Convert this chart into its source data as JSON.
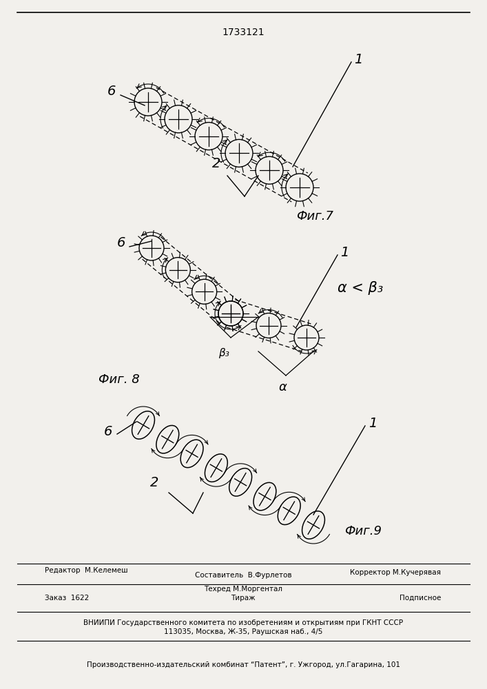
{
  "title": "1733121",
  "bg_color": "#f2f0ec",
  "fig7_label": "Фиг.7",
  "fig8_label": "Фиг. 8",
  "fig9_label": "Фиг.9",
  "alpha_beta_label": "α < β₃",
  "beta3_label": "β₃",
  "alpha_label": "α",
  "footer_line1_left": "Редактор  М.Келемеш",
  "footer_line1_center_top": "Составитель  В.Фурлетов",
  "footer_line1_center_bot": "Техред М.Моргентал",
  "footer_line1_right": "Корректор М.Кучерявая",
  "footer_line2_left": "Заказ  1622",
  "footer_line2_center": "Тираж",
  "footer_line2_right": "Подписное",
  "footer_line3": "ВНИИПИ Государственного комитета по изобретениям и открытиям при ГКНТ СССР",
  "footer_line4": "113035, Москва, Ж-35, Раушская наб., 4/5",
  "footer_line5": "Производственно-издательский комбинат “Патент”, г. Ужгород, ул.Гагарина, 101"
}
